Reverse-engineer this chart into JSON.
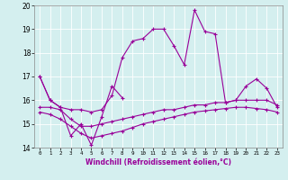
{
  "xlabel": "Windchill (Refroidissement éolien,°C)",
  "background_color": "#d4efef",
  "line_color": "#990099",
  "ylim": [
    14,
    20
  ],
  "xlim": [
    -0.5,
    23.5
  ],
  "yticks": [
    14,
    15,
    16,
    17,
    18,
    19,
    20
  ],
  "xticks": [
    0,
    1,
    2,
    3,
    4,
    5,
    6,
    7,
    8,
    9,
    10,
    11,
    12,
    13,
    14,
    15,
    16,
    17,
    18,
    19,
    20,
    21,
    22,
    23
  ],
  "xtick_labels": [
    "0",
    "1",
    "2",
    "3",
    "4",
    "5",
    "6",
    "7",
    "8",
    "9",
    "10",
    "11",
    "12",
    "13",
    "14",
    "15",
    "16",
    "17",
    "18",
    "19",
    "20",
    "21",
    "22",
    "23"
  ],
  "series1_x": [
    0,
    1,
    2,
    3,
    4,
    5,
    6,
    7,
    8
  ],
  "series1_y": [
    17.0,
    16.0,
    15.7,
    14.5,
    15.0,
    14.1,
    15.3,
    16.6,
    16.1
  ],
  "series2_x": [
    0,
    1,
    2,
    3,
    4,
    5,
    6,
    7,
    8,
    9,
    10,
    11,
    12,
    13,
    14,
    15,
    16,
    17,
    18,
    19,
    20,
    21,
    22,
    23
  ],
  "series2_y": [
    17.0,
    16.0,
    15.7,
    15.6,
    15.6,
    15.5,
    15.6,
    16.2,
    17.8,
    18.5,
    18.6,
    19.0,
    19.0,
    18.3,
    17.5,
    19.8,
    18.9,
    18.8,
    15.9,
    16.0,
    16.6,
    16.9,
    16.5,
    15.7
  ],
  "series3_x": [
    0,
    1,
    2,
    3,
    4,
    5,
    6,
    7,
    8,
    9,
    10,
    11,
    12,
    13,
    14,
    15,
    16,
    17,
    18,
    19,
    20,
    21,
    22,
    23
  ],
  "series3_y": [
    15.7,
    15.7,
    15.6,
    15.2,
    14.9,
    14.9,
    15.0,
    15.1,
    15.2,
    15.3,
    15.4,
    15.5,
    15.6,
    15.6,
    15.7,
    15.8,
    15.8,
    15.9,
    15.9,
    16.0,
    16.0,
    16.0,
    16.0,
    15.8
  ],
  "series4_x": [
    0,
    1,
    2,
    3,
    4,
    5,
    6,
    7,
    8,
    9,
    10,
    11,
    12,
    13,
    14,
    15,
    16,
    17,
    18,
    19,
    20,
    21,
    22,
    23
  ],
  "series4_y": [
    15.5,
    15.4,
    15.2,
    14.9,
    14.6,
    14.4,
    14.5,
    14.6,
    14.7,
    14.85,
    15.0,
    15.1,
    15.2,
    15.3,
    15.4,
    15.5,
    15.55,
    15.6,
    15.65,
    15.7,
    15.7,
    15.65,
    15.6,
    15.5
  ]
}
